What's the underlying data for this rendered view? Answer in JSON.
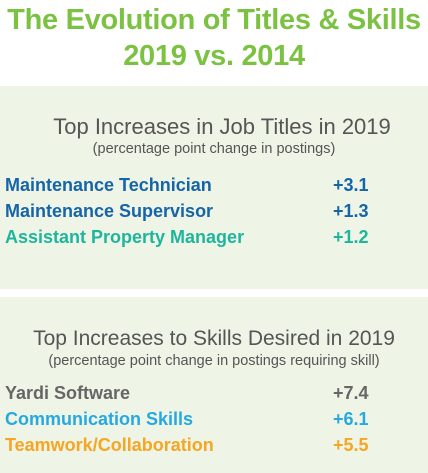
{
  "title": {
    "line1": "The Evolution of Titles & Skills",
    "line2": "2019 vs. 2014"
  },
  "job_titles": {
    "heading": "Top Increases in Job Titles in 2019",
    "subheading": "(percentage point change in postings)",
    "items": [
      {
        "label": "Maintenance Technician",
        "value": "+3.1",
        "color": "#1565a8"
      },
      {
        "label": "Maintenance Supervisor",
        "value": "+1.3",
        "color": "#1565a8"
      },
      {
        "label": "Assistant Property Manager",
        "value": "+1.2",
        "color": "#1fb59d"
      }
    ]
  },
  "skills": {
    "heading": "Top Increases to Skills Desired in 2019",
    "subheading": "(percentage point change in postings requiring skill)",
    "items": [
      {
        "label": "Yardi Software",
        "value": "+7.4",
        "color": "#666666"
      },
      {
        "label": "Communication Skills",
        "value": "+6.1",
        "color": "#27a9e0"
      },
      {
        "label": "Teamwork/Collaboration",
        "value": "+5.5",
        "color": "#f5a623"
      }
    ]
  },
  "colors": {
    "title": "#7cc242",
    "panel_background": "#eef4e6"
  }
}
